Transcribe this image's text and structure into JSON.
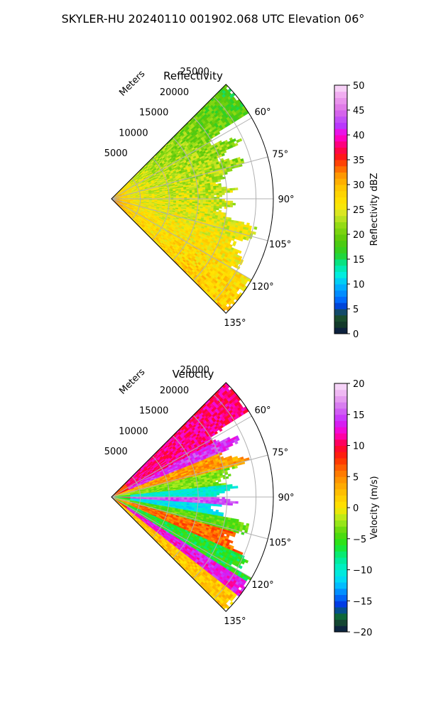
{
  "figure_title": "SKYLER-HU  20240110  001902.068 UTC Elevation 06°",
  "chart_data": [
    {
      "type": "heatmap",
      "title": "Reflectivity",
      "subtitle_projection": "polar sector (PPI)",
      "range_axis_label": "Meters",
      "range_ticks": [
        "5000",
        "10000",
        "15000",
        "20000",
        "25000"
      ],
      "range_max": 28000,
      "azimuth_ticks": [
        "60°",
        "75°",
        "90°",
        "105°",
        "120°",
        "135°"
      ],
      "azimuth_range_deg": [
        45,
        135
      ],
      "grid": true,
      "colorbar": {
        "label": "Reflectivity dBZ",
        "min": 0,
        "max": 50,
        "ticks": [
          "0",
          "5",
          "10",
          "15",
          "20",
          "25",
          "30",
          "35",
          "40",
          "45",
          "50"
        ],
        "tick_values": [
          0,
          5,
          10,
          15,
          20,
          25,
          30,
          35,
          40,
          45,
          50
        ]
      },
      "field_description": "mostly 20-30 dBZ; strongest (30-38) near radar and along south-east edge; weaker green (15-22) at far range toward north-east"
    },
    {
      "type": "heatmap",
      "title": "Velocity",
      "subtitle_projection": "polar sector (PPI)",
      "range_axis_label": "Meters",
      "range_ticks": [
        "5000",
        "10000",
        "15000",
        "20000",
        "25000"
      ],
      "range_max": 28000,
      "azimuth_ticks": [
        "60°",
        "75°",
        "90°",
        "105°",
        "120°",
        "135°"
      ],
      "azimuth_range_deg": [
        45,
        135
      ],
      "grid": true,
      "colorbar": {
        "label": "Velocity (m/s)",
        "min": -20,
        "max": 20,
        "ticks": [
          "−20",
          "−15",
          "−10",
          "−5",
          "0",
          "5",
          "10",
          "15",
          "20"
        ],
        "tick_values": [
          -20,
          -15,
          -10,
          -5,
          0,
          5,
          10,
          15,
          20
        ]
      },
      "field_description": "bands of velocity: positive (10-20 m/s) near north edge and south-east, negative (-15 to -5) along center radial and south-west band, folding near 100-110°"
    }
  ]
}
